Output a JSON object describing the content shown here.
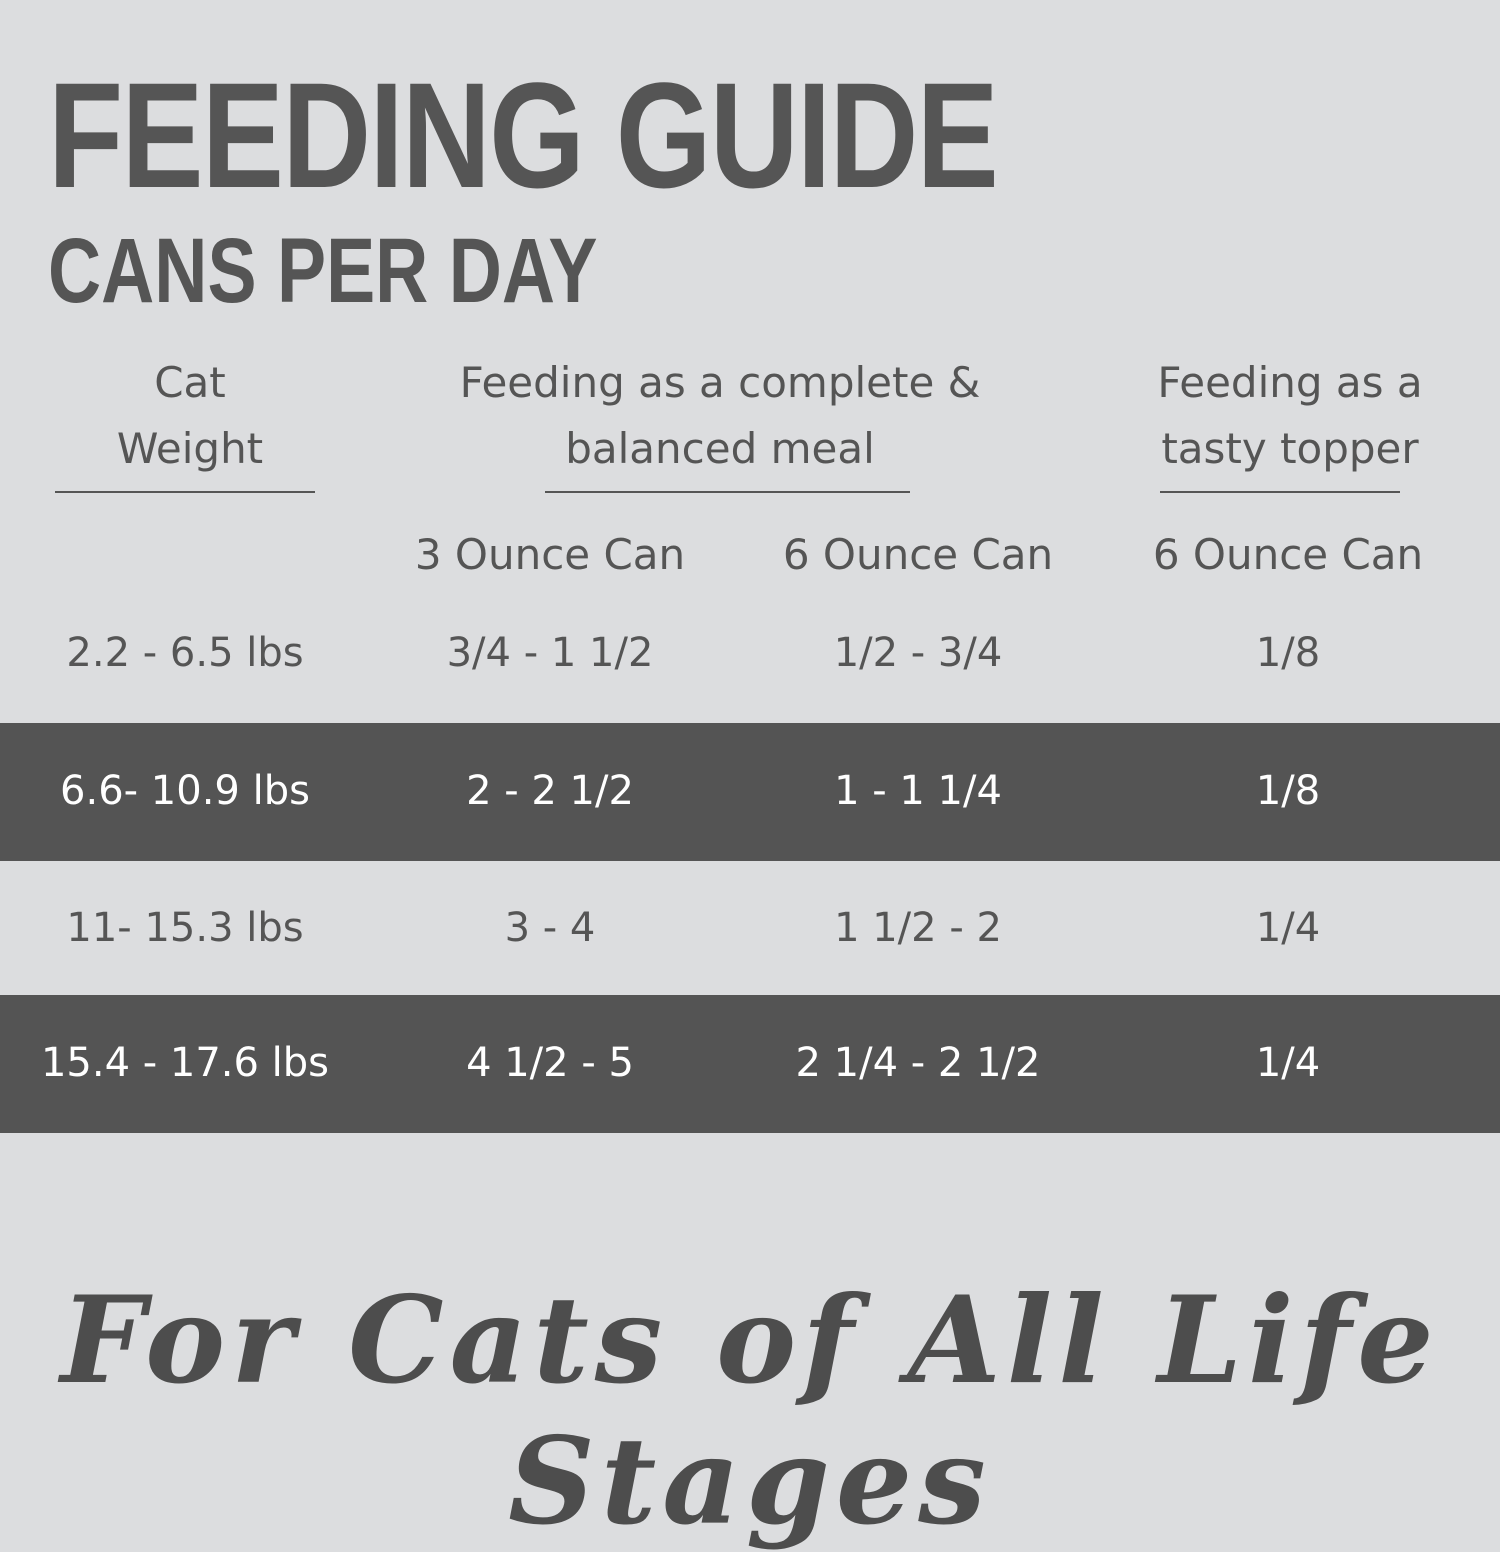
{
  "header": {
    "title": "FEEDING GUIDE",
    "subtitle": "CANS PER DAY"
  },
  "table": {
    "group_headers": [
      "Cat\nWeight",
      "Feeding as a complete &\nbalanced meal",
      "Feeding as a\ntasty topper"
    ],
    "sub_headers": [
      "3 Ounce Can",
      "6 Ounce Can",
      "6 Ounce Can"
    ],
    "rows": [
      [
        "2.2 - 6.5 lbs",
        "3/4 - 1 1/2",
        "1/2 - 3/4",
        "1/8"
      ],
      [
        "6.6- 10.9 lbs",
        "2 - 2 1/2",
        "1 - 1 1/4",
        "1/8"
      ],
      [
        "11- 15.3 lbs",
        "3 - 4",
        "1 1/2 - 2",
        "1/4"
      ],
      [
        "15.4 - 17.6 lbs",
        "4 1/2 - 5",
        "2 1/4 - 2 1/2",
        "1/4"
      ]
    ]
  },
  "footer": {
    "tagline": "For Cats of All Life Stages"
  }
}
